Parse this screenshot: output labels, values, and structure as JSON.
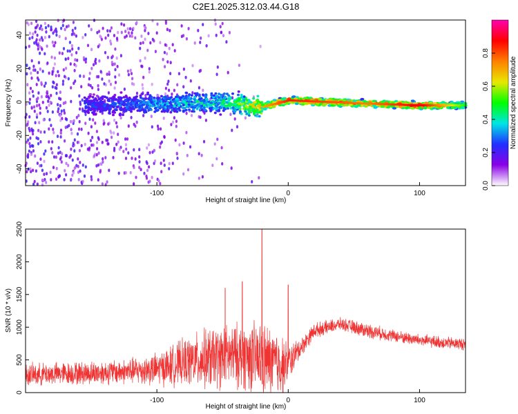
{
  "title": "C2E1.2025.312.03.44.G18",
  "chart_data": [
    {
      "type": "heatmap",
      "xlabel": "Height of straight line (km)",
      "ylabel": "Frequency (Hz)",
      "xlim": [
        -200,
        135
      ],
      "ylim": [
        -50,
        49
      ],
      "xticks": [
        -100,
        0,
        100
      ],
      "yticks": [
        -40,
        -20,
        0,
        20,
        40
      ],
      "colorbar": {
        "label": "Normalized spectral amplitude",
        "range": [
          0,
          1
        ],
        "ticks": [
          "0.0",
          "0.2",
          "0.4",
          "0.6",
          "0.8"
        ],
        "colormap": [
          "#ffffff",
          "#8a00e6",
          "#2030ff",
          "#00e5e5",
          "#00ff00",
          "#e8e800",
          "#ff8000",
          "#ff0000",
          "#ff00b0"
        ]
      },
      "ridge": [
        {
          "x": -150,
          "f": -2,
          "amp": 0.25
        },
        {
          "x": -100,
          "f": -1,
          "amp": 0.35
        },
        {
          "x": -50,
          "f": 0,
          "amp": 0.45
        },
        {
          "x": -20,
          "f": -3,
          "amp": 0.7
        },
        {
          "x": 0,
          "f": 1,
          "amp": 0.85
        },
        {
          "x": 60,
          "f": -1,
          "amp": 0.75
        },
        {
          "x": 100,
          "f": -2,
          "amp": 0.9
        },
        {
          "x": 135,
          "f": -2,
          "amp": 0.5
        }
      ]
    },
    {
      "type": "line",
      "xlabel": "Height of straight line (km)",
      "ylabel": "SNR (10 * v/v)",
      "xlim": [
        -200,
        135
      ],
      "ylim": [
        0,
        2500
      ],
      "xticks": [
        -100,
        0,
        100
      ],
      "yticks": [
        0,
        500,
        1000,
        1500,
        2000,
        2500
      ],
      "series": [
        {
          "color": "#ef3232",
          "x": [
            -200,
            -175,
            -150,
            -125,
            -100,
            -75,
            -60,
            -45,
            -30,
            -20,
            -10,
            -5,
            0,
            10,
            20,
            40,
            60,
            80,
            100,
            120,
            135
          ],
          "y_mean": [
            270,
            290,
            300,
            320,
            360,
            480,
            520,
            560,
            560,
            500,
            450,
            420,
            450,
            700,
            950,
            1050,
            950,
            870,
            800,
            760,
            740
          ],
          "y_spread": [
            180,
            180,
            190,
            200,
            260,
            400,
            500,
            500,
            550,
            600,
            550,
            500,
            300,
            150,
            120,
            100,
            120,
            100,
            100,
            100,
            100
          ],
          "spikes": [
            {
              "x": -20,
              "y": 2500
            },
            {
              "x": 0,
              "y": 1650
            },
            {
              "x": -48,
              "y": 1600
            },
            {
              "x": -35,
              "y": 1700
            }
          ]
        }
      ]
    }
  ]
}
